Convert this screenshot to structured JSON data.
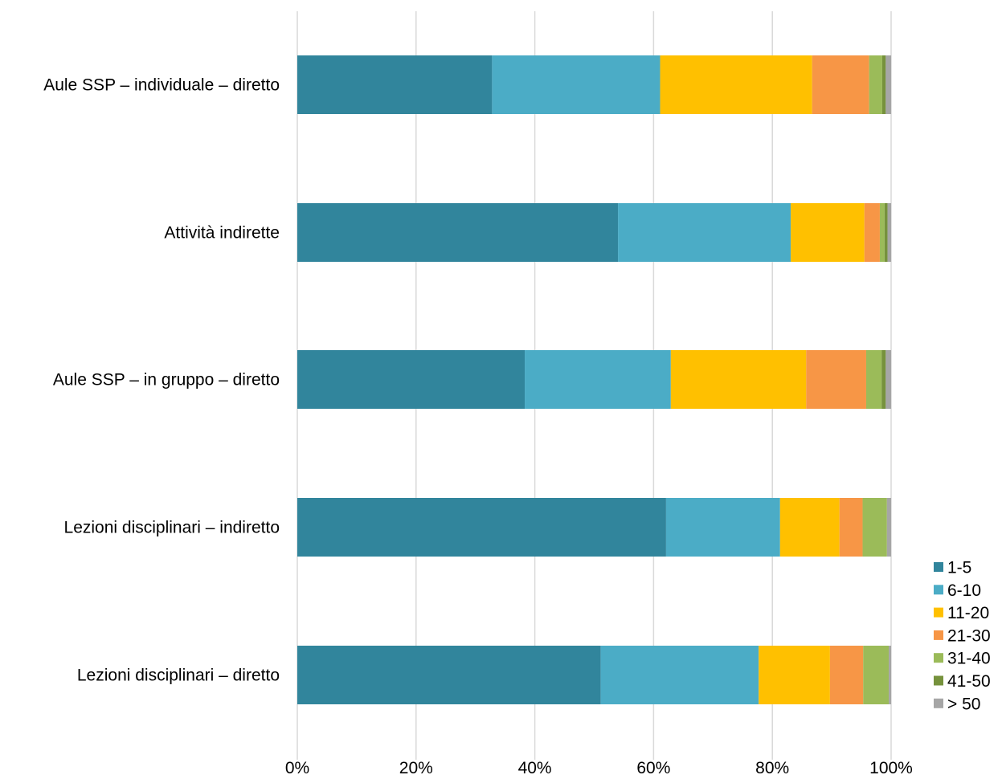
{
  "chart_data": {
    "type": "bar",
    "orientation": "horizontal",
    "stacked": "percent",
    "categories": [
      "Aule SSP – individuale – diretto",
      "Attività indirette",
      "Aule SSP – in gruppo – diretto",
      "Lezioni disciplinari – indiretto",
      "Lezioni disciplinari – diretto"
    ],
    "series": [
      {
        "name": "1-5",
        "color": "#31859c",
        "values": [
          32.8,
          54.0,
          38.3,
          62.1,
          51.1
        ]
      },
      {
        "name": "6-10",
        "color": "#4bacc6",
        "values": [
          28.3,
          29.1,
          24.6,
          19.2,
          26.6
        ]
      },
      {
        "name": "11-20",
        "color": "#ffc000",
        "values": [
          25.6,
          12.4,
          22.8,
          10.0,
          12.0
        ]
      },
      {
        "name": "21-30",
        "color": "#f79646",
        "values": [
          9.6,
          2.6,
          10.1,
          3.9,
          5.6
        ]
      },
      {
        "name": "31-40",
        "color": "#9bbb59",
        "values": [
          2.2,
          0.8,
          2.6,
          4.1,
          4.3
        ]
      },
      {
        "name": "41-50",
        "color": "#76923c",
        "values": [
          0.6,
          0.5,
          0.7,
          0.0,
          0.0
        ]
      },
      {
        "name": "> 50",
        "color": "#a6a6a6",
        "values": [
          0.9,
          0.6,
          0.9,
          0.7,
          0.4
        ]
      }
    ],
    "x_ticks": [
      "0%",
      "20%",
      "40%",
      "60%",
      "80%",
      "100%"
    ],
    "xlim": [
      0,
      100
    ],
    "grid": "vertical",
    "legend": "bottom-right",
    "gridline_color": "#d9d9d9"
  }
}
